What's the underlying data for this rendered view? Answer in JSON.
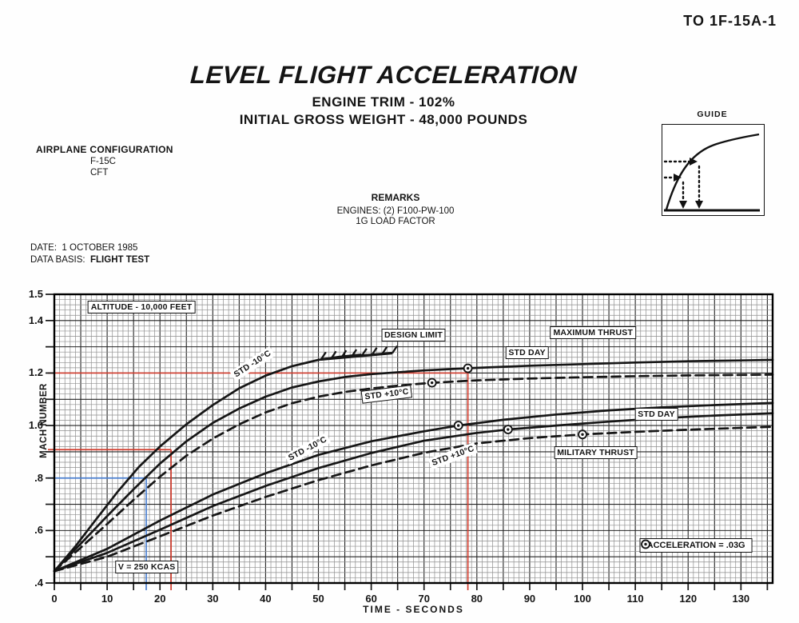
{
  "page": {
    "doc_number": "TO 1F-15A-1",
    "title": "LEVEL FLIGHT ACCELERATION",
    "subtitle1": "ENGINE TRIM - 102%",
    "subtitle2": "INITIAL GROSS WEIGHT - 48,000 POUNDS",
    "config": {
      "heading": "AIRPLANE CONFIGURATION",
      "lines": [
        "F-15C",
        "CFT"
      ]
    },
    "remarks": {
      "heading": "REMARKS",
      "lines": [
        "ENGINES: (2) F100-PW-100",
        "1G LOAD FACTOR"
      ]
    },
    "guide_label": "GUIDE",
    "date_label": "DATE:",
    "date_value": "1 OCTOBER 1985",
    "data_basis_label": "DATA BASIS:",
    "data_basis_value": "FLIGHT TEST"
  },
  "chart_data": {
    "type": "line",
    "title": "LEVEL FLIGHT ACCELERATION",
    "xlabel": "TIME - SECONDS",
    "ylabel": "MACH NUMBER",
    "xlim": [
      0,
      136
    ],
    "ylim": [
      0.4,
      1.5
    ],
    "grid": "fine 1 sec x 0.02 Mach, major every 5 sec x 0.1 Mach",
    "x_tick_labels": [
      0,
      10,
      20,
      30,
      40,
      50,
      60,
      70,
      80,
      90,
      100,
      110,
      120,
      130
    ],
    "y_tick_labels": [
      {
        "v": 1.5,
        "t": "1.5"
      },
      {
        "v": 1.4,
        "t": "1.4"
      },
      {
        "v": 1.2,
        "t": "1.2"
      },
      {
        "v": 1.0,
        "t": "1.0"
      },
      {
        "v": 0.8,
        "t": ".8"
      },
      {
        "v": 0.6,
        "t": ".6"
      },
      {
        "v": 0.4,
        "t": ".4"
      }
    ],
    "series": [
      {
        "name": "maximum-thrust-std-minus-10C",
        "label": "STD -10°C",
        "thrust": "MAXIMUM THRUST",
        "style": "solid",
        "points": [
          [
            0,
            0.445
          ],
          [
            4,
            0.54
          ],
          [
            8,
            0.645
          ],
          [
            12,
            0.748
          ],
          [
            16,
            0.842
          ],
          [
            20,
            0.92
          ],
          [
            25,
            1.005
          ],
          [
            30,
            1.078
          ],
          [
            35,
            1.142
          ],
          [
            40,
            1.19
          ],
          [
            45,
            1.226
          ],
          [
            50,
            1.25
          ],
          [
            54,
            1.262
          ],
          [
            58,
            1.27
          ]
        ]
      },
      {
        "name": "maximum-thrust-std-day",
        "label": "STD DAY",
        "thrust": "MAXIMUM THRUST",
        "style": "solid",
        "points": [
          [
            0,
            0.445
          ],
          [
            5,
            0.55
          ],
          [
            10,
            0.655
          ],
          [
            15,
            0.757
          ],
          [
            20,
            0.855
          ],
          [
            25,
            0.94
          ],
          [
            30,
            1.01
          ],
          [
            35,
            1.065
          ],
          [
            40,
            1.11
          ],
          [
            45,
            1.145
          ],
          [
            50,
            1.168
          ],
          [
            55,
            1.185
          ],
          [
            60,
            1.196
          ],
          [
            70,
            1.21
          ],
          [
            78,
            1.218
          ],
          [
            90,
            1.228
          ],
          [
            100,
            1.234
          ],
          [
            110,
            1.24
          ],
          [
            120,
            1.245
          ],
          [
            130,
            1.248
          ],
          [
            136,
            1.25
          ]
        ],
        "marker": [
          78.3,
          1.218
        ]
      },
      {
        "name": "maximum-thrust-std-plus-10C",
        "label": "STD +10°C",
        "thrust": "MAXIMUM THRUST",
        "style": "dashed",
        "points": [
          [
            0,
            0.445
          ],
          [
            5,
            0.535
          ],
          [
            10,
            0.625
          ],
          [
            15,
            0.717
          ],
          [
            20,
            0.805
          ],
          [
            25,
            0.885
          ],
          [
            30,
            0.95
          ],
          [
            35,
            1.005
          ],
          [
            40,
            1.05
          ],
          [
            45,
            1.085
          ],
          [
            50,
            1.11
          ],
          [
            55,
            1.128
          ],
          [
            60,
            1.141
          ],
          [
            65,
            1.152
          ],
          [
            71.5,
            1.163
          ],
          [
            80,
            1.172
          ],
          [
            90,
            1.179
          ],
          [
            100,
            1.184
          ],
          [
            110,
            1.188
          ],
          [
            120,
            1.191
          ],
          [
            130,
            1.193
          ],
          [
            136,
            1.194
          ]
        ],
        "marker": [
          71.5,
          1.163
        ]
      },
      {
        "name": "military-thrust-std-minus-10C",
        "label": "STD -10°C",
        "thrust": "MILITARY THRUST",
        "style": "solid",
        "points": [
          [
            0,
            0.445
          ],
          [
            10,
            0.53
          ],
          [
            20,
            0.638
          ],
          [
            30,
            0.737
          ],
          [
            40,
            0.818
          ],
          [
            50,
            0.888
          ],
          [
            60,
            0.94
          ],
          [
            70,
            0.978
          ],
          [
            76.5,
            1.0
          ],
          [
            85,
            1.022
          ],
          [
            95,
            1.042
          ],
          [
            105,
            1.058
          ],
          [
            115,
            1.069
          ],
          [
            125,
            1.078
          ],
          [
            136,
            1.086
          ]
        ],
        "marker": [
          76.5,
          1.0
        ]
      },
      {
        "name": "military-thrust-std-day",
        "label": "STD DAY",
        "thrust": "MILITARY THRUST",
        "style": "solid",
        "points": [
          [
            0,
            0.445
          ],
          [
            10,
            0.515
          ],
          [
            20,
            0.603
          ],
          [
            30,
            0.693
          ],
          [
            40,
            0.77
          ],
          [
            50,
            0.838
          ],
          [
            60,
            0.895
          ],
          [
            70,
            0.942
          ],
          [
            80,
            0.972
          ],
          [
            86,
            0.985
          ],
          [
            95,
            1.0
          ],
          [
            105,
            1.015
          ],
          [
            115,
            1.028
          ],
          [
            125,
            1.038
          ],
          [
            136,
            1.047
          ]
        ],
        "marker": [
          85.9,
          0.985
        ]
      },
      {
        "name": "military-thrust-std-plus-10C",
        "label": "STD +10°C",
        "thrust": "MILITARY THRUST",
        "style": "dashed",
        "points": [
          [
            0,
            0.445
          ],
          [
            10,
            0.5
          ],
          [
            20,
            0.578
          ],
          [
            30,
            0.657
          ],
          [
            40,
            0.728
          ],
          [
            50,
            0.792
          ],
          [
            60,
            0.848
          ],
          [
            70,
            0.896
          ],
          [
            80,
            0.932
          ],
          [
            90,
            0.952
          ],
          [
            100,
            0.966
          ],
          [
            110,
            0.976
          ],
          [
            120,
            0.984
          ],
          [
            130,
            0.991
          ],
          [
            136,
            0.995
          ]
        ],
        "marker": [
          100,
          0.966
        ]
      }
    ],
    "design_limit": {
      "label": "DESIGN LIMIT",
      "base": [
        [
          50.5,
          1.252
        ],
        [
          64,
          1.276
        ]
      ],
      "hatch_count": 8
    },
    "annotations": [
      {
        "id": "altitude-note",
        "text": "ALTITUDE - 10,000 FEET",
        "x": 16.5,
        "y": 1.452,
        "boxed": true,
        "rot": 0
      },
      {
        "id": "design-limit-label",
        "text": "DESIGN LIMIT",
        "x": 68,
        "y": 1.345,
        "boxed": true,
        "rot": 0
      },
      {
        "id": "maximum-thrust-label",
        "text": "MAXIMUM THRUST",
        "x": 102,
        "y": 1.354,
        "boxed": true,
        "rot": 0
      },
      {
        "id": "std-day-upper-label",
        "text": "STD DAY",
        "x": 89.5,
        "y": 1.278,
        "boxed": true,
        "rot": 0
      },
      {
        "id": "std-minus10-upper",
        "text": "STD -10°C",
        "x": 37.5,
        "y": 1.235,
        "boxed": false,
        "rot": -33
      },
      {
        "id": "std-plus10-upper",
        "text": "STD +10°C",
        "x": 63,
        "y": 1.118,
        "boxed": true,
        "rot": -7
      },
      {
        "id": "std-day-lower-label",
        "text": "STD DAY",
        "x": 114,
        "y": 1.043,
        "boxed": true,
        "rot": 0
      },
      {
        "id": "military-thrust-label",
        "text": "MILITARY THRUST",
        "x": 102.5,
        "y": 0.897,
        "boxed": true,
        "rot": 0
      },
      {
        "id": "std-minus10-lower",
        "text": "STD -10°C",
        "x": 48,
        "y": 0.912,
        "boxed": false,
        "rot": -28
      },
      {
        "id": "std-plus10-lower",
        "text": "STD +10°C",
        "x": 75.5,
        "y": 0.885,
        "boxed": false,
        "rot": -20
      },
      {
        "id": "airspeed-note",
        "text": "V = 250 KCAS",
        "x": 17.5,
        "y": 0.462,
        "boxed": true,
        "rot": 0
      }
    ],
    "guides": [
      {
        "color": "red",
        "mach": 1.2,
        "time": 78.3,
        "v_top": 1.23
      },
      {
        "color": "red",
        "mach": 0.908,
        "time": 22.1,
        "v_top": 0.908
      },
      {
        "color": "blue",
        "mach": 0.8,
        "time": 17.4,
        "v_top": 0.8
      }
    ],
    "legend": {
      "symbol": "acceleration-marker-icon",
      "text": "ACCELERATION = .03G",
      "x": 121.5,
      "y": 0.543
    },
    "colors": {
      "red": "#d23b2c",
      "blue": "#4a7fd0",
      "ink": "#161616"
    }
  }
}
